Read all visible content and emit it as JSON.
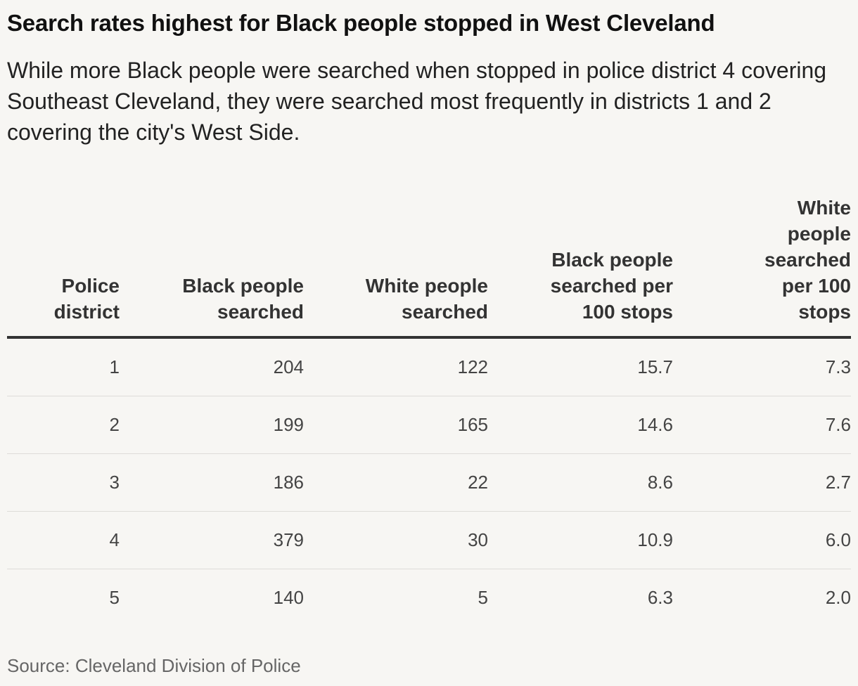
{
  "chart_data": {
    "type": "table",
    "title": "Search rates highest for Black people stopped in West Cleveland",
    "subtitle": "While more Black people were searched when stopped in police district 4 covering Southeast Cleveland, they were searched most frequently in districts 1 and 2 covering the city's West Side.",
    "columns": [
      "Police district",
      "Black people searched",
      "White people searched",
      "Black people searched per 100 stops",
      "White people searched per 100 stops"
    ],
    "rows": [
      [
        "1",
        "204",
        "122",
        "15.7",
        "7.3"
      ],
      [
        "2",
        "199",
        "165",
        "14.6",
        "7.6"
      ],
      [
        "3",
        "186",
        "22",
        "8.6",
        "2.7"
      ],
      [
        "4",
        "379",
        "30",
        "10.9",
        "6.0"
      ],
      [
        "5",
        "140",
        "5",
        "6.3",
        "2.0"
      ]
    ],
    "source": "Source: Cleveland Division of Police"
  }
}
